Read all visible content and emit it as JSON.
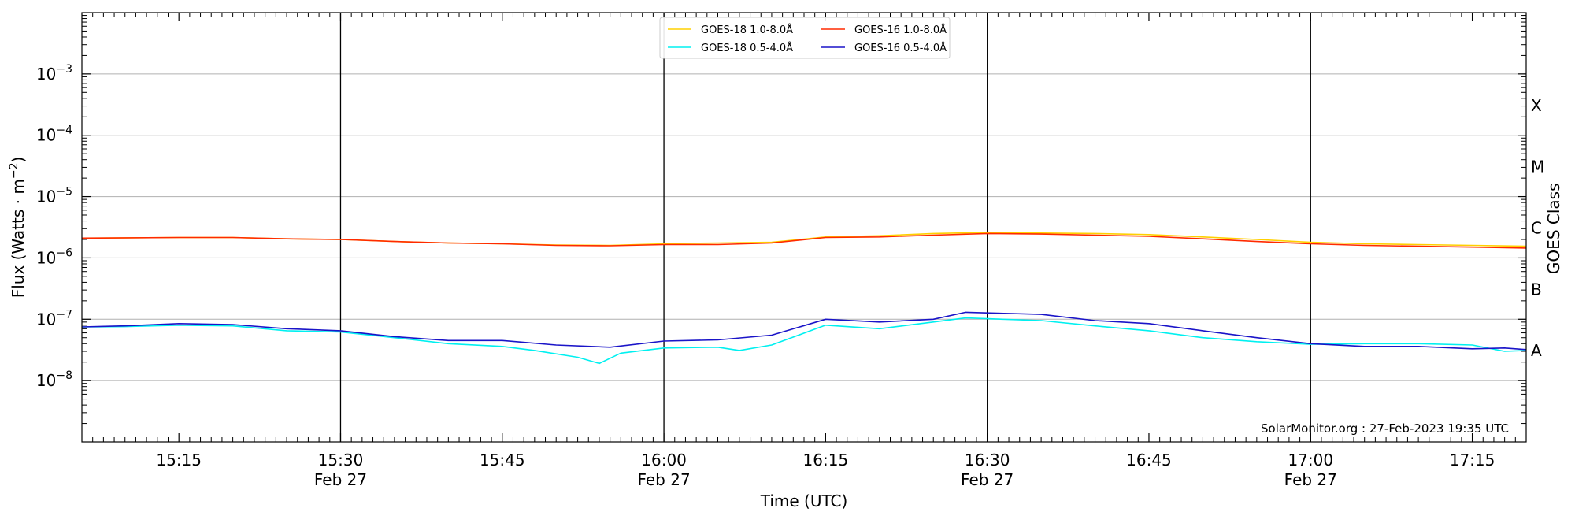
{
  "chart_data": {
    "type": "line",
    "xlabel": "Time (UTC)",
    "ylabel_base": "Flux (Watts · m",
    "ylabel_sup": "−2",
    "ylabel_tail": ")",
    "right_axis_label": "GOES Class",
    "credit": "SolarMonitor.org : 27-Feb-2023 19:35 UTC",
    "x_start": "15:06",
    "x_end": "17:20",
    "ylim": [
      1e-09,
      0.01
    ],
    "yscale": "log",
    "x_ticks": [
      {
        "time": "15:15",
        "label": "15:15",
        "date": ""
      },
      {
        "time": "15:30",
        "label": "15:30",
        "date": "Feb 27"
      },
      {
        "time": "15:45",
        "label": "15:45",
        "date": ""
      },
      {
        "time": "16:00",
        "label": "16:00",
        "date": "Feb 27"
      },
      {
        "time": "16:15",
        "label": "16:15",
        "date": ""
      },
      {
        "time": "16:30",
        "label": "16:30",
        "date": "Feb 27"
      },
      {
        "time": "16:45",
        "label": "16:45",
        "date": ""
      },
      {
        "time": "17:00",
        "label": "17:00",
        "date": "Feb 27"
      },
      {
        "time": "17:15",
        "label": "17:15",
        "date": ""
      }
    ],
    "vertical_lines": [
      "15:30",
      "16:00",
      "16:30",
      "17:00"
    ],
    "y_ticks": [
      {
        "value": 1e-08,
        "exp": "−8"
      },
      {
        "value": 1e-07,
        "exp": "−7"
      },
      {
        "value": 1e-06,
        "exp": "−6"
      },
      {
        "value": 1e-05,
        "exp": "−5"
      },
      {
        "value": 0.0001,
        "exp": "−4"
      },
      {
        "value": 0.001,
        "exp": "−3"
      }
    ],
    "y_tick_base": "10",
    "class_labels": [
      {
        "label": "A",
        "value": 1e-08
      },
      {
        "label": "B",
        "value": 1e-07
      },
      {
        "label": "C",
        "value": 1e-06
      },
      {
        "label": "M",
        "value": 1e-05
      },
      {
        "label": "X",
        "value": 0.0001
      }
    ],
    "grid": true,
    "legend_position": "top-center",
    "series": [
      {
        "name": "GOES-18 1.0-8.0Å",
        "color": "#ffd000",
        "points": [
          [
            "15:06",
            2.1e-06
          ],
          [
            "15:15",
            2.15e-06
          ],
          [
            "15:20",
            2.15e-06
          ],
          [
            "15:25",
            2.05e-06
          ],
          [
            "15:30",
            2e-06
          ],
          [
            "15:35",
            1.85e-06
          ],
          [
            "15:40",
            1.75e-06
          ],
          [
            "15:45",
            1.7e-06
          ],
          [
            "15:50",
            1.62e-06
          ],
          [
            "15:55",
            1.6e-06
          ],
          [
            "16:00",
            1.7e-06
          ],
          [
            "16:05",
            1.75e-06
          ],
          [
            "16:10",
            1.8e-06
          ],
          [
            "16:15",
            2.2e-06
          ],
          [
            "16:20",
            2.3e-06
          ],
          [
            "16:25",
            2.5e-06
          ],
          [
            "16:30",
            2.6e-06
          ],
          [
            "16:35",
            2.55e-06
          ],
          [
            "16:40",
            2.5e-06
          ],
          [
            "16:45",
            2.4e-06
          ],
          [
            "16:50",
            2.2e-06
          ],
          [
            "16:55",
            2e-06
          ],
          [
            "17:00",
            1.8e-06
          ],
          [
            "17:05",
            1.7e-06
          ],
          [
            "17:10",
            1.65e-06
          ],
          [
            "17:15",
            1.6e-06
          ],
          [
            "17:20",
            1.55e-06
          ]
        ]
      },
      {
        "name": "GOES-18 0.5-4.0Å",
        "color": "#00f0f0",
        "points": [
          [
            "15:06",
            7.5e-08
          ],
          [
            "15:10",
            7.6e-08
          ],
          [
            "15:15",
            8e-08
          ],
          [
            "15:20",
            7.8e-08
          ],
          [
            "15:25",
            6.5e-08
          ],
          [
            "15:30",
            6.2e-08
          ],
          [
            "15:35",
            5e-08
          ],
          [
            "15:40",
            4e-08
          ],
          [
            "15:45",
            3.6e-08
          ],
          [
            "15:48",
            3.1e-08
          ],
          [
            "15:52",
            2.4e-08
          ],
          [
            "15:54",
            1.9e-08
          ],
          [
            "15:56",
            2.8e-08
          ],
          [
            "16:00",
            3.4e-08
          ],
          [
            "16:05",
            3.5e-08
          ],
          [
            "16:07",
            3.1e-08
          ],
          [
            "16:10",
            3.8e-08
          ],
          [
            "16:15",
            8e-08
          ],
          [
            "16:20",
            7e-08
          ],
          [
            "16:25",
            9e-08
          ],
          [
            "16:28",
            1.05e-07
          ],
          [
            "16:35",
            9.5e-08
          ],
          [
            "16:40",
            7.8e-08
          ],
          [
            "16:45",
            6.5e-08
          ],
          [
            "16:50",
            5e-08
          ],
          [
            "16:55",
            4.3e-08
          ],
          [
            "17:00",
            3.9e-08
          ],
          [
            "17:05",
            4e-08
          ],
          [
            "17:10",
            4e-08
          ],
          [
            "17:15",
            3.8e-08
          ],
          [
            "17:18",
            3e-08
          ],
          [
            "17:20",
            3.1e-08
          ]
        ]
      },
      {
        "name": "GOES-16 1.0-8.0Å",
        "color": "#ff2a00",
        "points": [
          [
            "15:06",
            2.1e-06
          ],
          [
            "15:15",
            2.15e-06
          ],
          [
            "15:20",
            2.15e-06
          ],
          [
            "15:25",
            2.05e-06
          ],
          [
            "15:30",
            2e-06
          ],
          [
            "15:35",
            1.85e-06
          ],
          [
            "15:40",
            1.75e-06
          ],
          [
            "15:45",
            1.7e-06
          ],
          [
            "15:50",
            1.6e-06
          ],
          [
            "15:55",
            1.58e-06
          ],
          [
            "16:00",
            1.65e-06
          ],
          [
            "16:05",
            1.65e-06
          ],
          [
            "16:10",
            1.75e-06
          ],
          [
            "16:15",
            2.15e-06
          ],
          [
            "16:20",
            2.2e-06
          ],
          [
            "16:25",
            2.35e-06
          ],
          [
            "16:30",
            2.5e-06
          ],
          [
            "16:35",
            2.45e-06
          ],
          [
            "16:40",
            2.35e-06
          ],
          [
            "16:45",
            2.25e-06
          ],
          [
            "16:50",
            2.05e-06
          ],
          [
            "16:55",
            1.85e-06
          ],
          [
            "17:00",
            1.7e-06
          ],
          [
            "17:05",
            1.6e-06
          ],
          [
            "17:10",
            1.55e-06
          ],
          [
            "17:15",
            1.5e-06
          ],
          [
            "17:20",
            1.45e-06
          ]
        ]
      },
      {
        "name": "GOES-16 0.5-4.0Å",
        "color": "#1a14c8",
        "points": [
          [
            "15:06",
            7.5e-08
          ],
          [
            "15:10",
            7.8e-08
          ],
          [
            "15:15",
            8.5e-08
          ],
          [
            "15:20",
            8.2e-08
          ],
          [
            "15:25",
            7e-08
          ],
          [
            "15:30",
            6.5e-08
          ],
          [
            "15:35",
            5.2e-08
          ],
          [
            "15:40",
            4.5e-08
          ],
          [
            "15:45",
            4.5e-08
          ],
          [
            "15:50",
            3.8e-08
          ],
          [
            "15:55",
            3.5e-08
          ],
          [
            "16:00",
            4.4e-08
          ],
          [
            "16:05",
            4.6e-08
          ],
          [
            "16:10",
            5.5e-08
          ],
          [
            "16:15",
            1e-07
          ],
          [
            "16:20",
            9e-08
          ],
          [
            "16:25",
            1e-07
          ],
          [
            "16:28",
            1.3e-07
          ],
          [
            "16:35",
            1.2e-07
          ],
          [
            "16:40",
            9.5e-08
          ],
          [
            "16:45",
            8.5e-08
          ],
          [
            "16:50",
            6.5e-08
          ],
          [
            "16:55",
            5e-08
          ],
          [
            "17:00",
            4e-08
          ],
          [
            "17:05",
            3.6e-08
          ],
          [
            "17:10",
            3.6e-08
          ],
          [
            "17:15",
            3.3e-08
          ],
          [
            "17:18",
            3.4e-08
          ],
          [
            "17:20",
            3.2e-08
          ]
        ]
      }
    ]
  }
}
